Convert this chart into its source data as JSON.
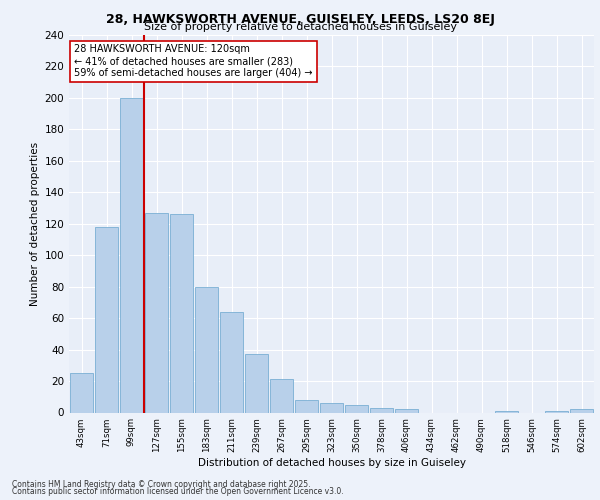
{
  "title1": "28, HAWKSWORTH AVENUE, GUISELEY, LEEDS, LS20 8EJ",
  "title2": "Size of property relative to detached houses in Guiseley",
  "xlabel": "Distribution of detached houses by size in Guiseley",
  "ylabel": "Number of detached properties",
  "bar_labels": [
    "43sqm",
    "71sqm",
    "99sqm",
    "127sqm",
    "155sqm",
    "183sqm",
    "211sqm",
    "239sqm",
    "267sqm",
    "295sqm",
    "323sqm",
    "350sqm",
    "378sqm",
    "406sqm",
    "434sqm",
    "462sqm",
    "490sqm",
    "518sqm",
    "546sqm",
    "574sqm",
    "602sqm"
  ],
  "bar_values": [
    25,
    118,
    200,
    127,
    126,
    80,
    64,
    37,
    21,
    8,
    6,
    5,
    3,
    2,
    0,
    0,
    0,
    1,
    0,
    1,
    2
  ],
  "bar_color": "#b8d0ea",
  "bar_edge_color": "#7aafd4",
  "vline_x": 2.5,
  "vline_color": "#cc0000",
  "annotation_text": "28 HAWKSWORTH AVENUE: 120sqm\n← 41% of detached houses are smaller (283)\n59% of semi-detached houses are larger (404) →",
  "annotation_box_color": "#ffffff",
  "annotation_box_edge": "#cc0000",
  "ylim": [
    0,
    240
  ],
  "yticks": [
    0,
    20,
    40,
    60,
    80,
    100,
    120,
    140,
    160,
    180,
    200,
    220,
    240
  ],
  "background_color": "#e8eef8",
  "grid_color": "#ffffff",
  "footer1": "Contains HM Land Registry data © Crown copyright and database right 2025.",
  "footer2": "Contains public sector information licensed under the Open Government Licence v3.0.",
  "fig_bg": "#edf2fa"
}
